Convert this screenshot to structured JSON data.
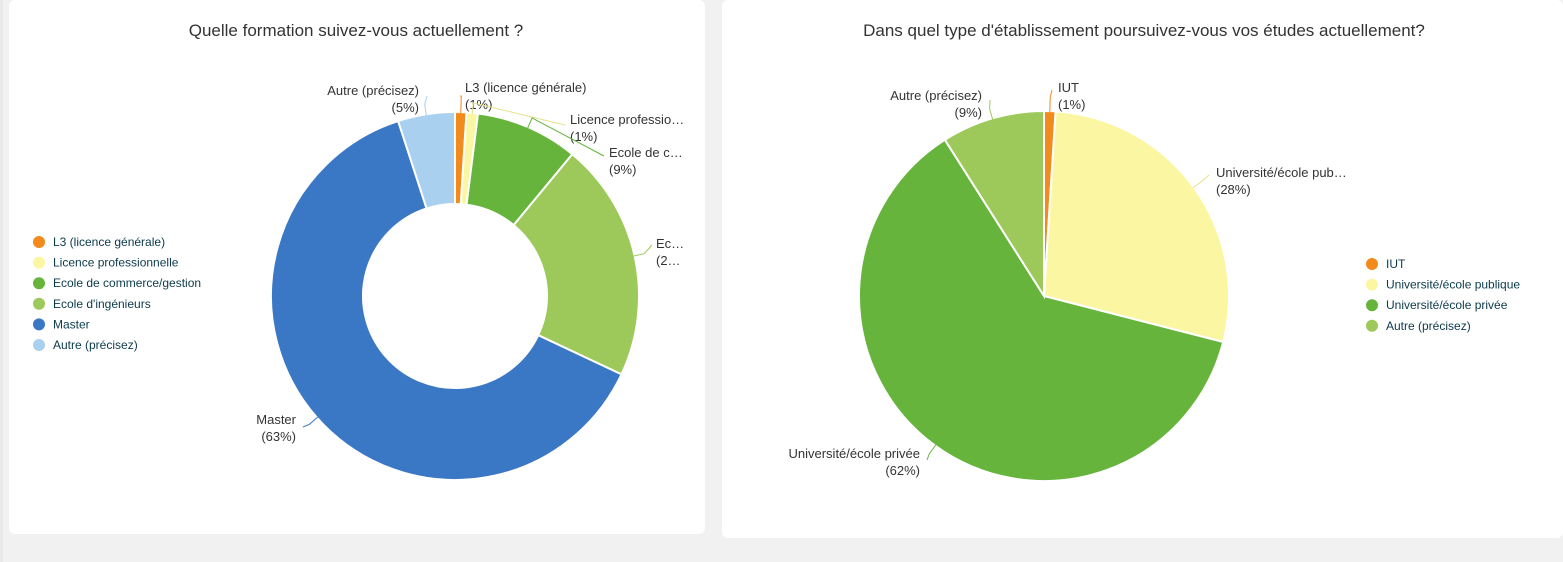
{
  "charts": [
    {
      "id": "left",
      "chart_data": {
        "type": "pie",
        "variant": "donut",
        "title": "Quelle formation suivez-vous actuellement ?",
        "categories": [
          "L3 (licence générale)",
          "Licence professionnelle",
          "Ecole de commerce/gestion",
          "Ecole d'ingénieurs",
          "Master",
          "Autre (précisez)"
        ],
        "values": [
          1,
          1,
          9,
          21,
          63,
          5
        ],
        "colors": [
          "#f28a1c",
          "#fbf6a1",
          "#66b43c",
          "#9dc95a",
          "#3a77c4",
          "#aad0ef"
        ],
        "slice_labels": [
          {
            "name": "L3 (licence générale)",
            "pct": "(1%)"
          },
          {
            "name": "Licence professio…",
            "pct": "(1%)"
          },
          {
            "name": "Ecole de c…",
            "pct": "(9%)"
          },
          {
            "name": "Ec…",
            "pct": "(2…"
          },
          {
            "name": "Master",
            "pct": "(63%)"
          },
          {
            "name": "Autre (précisez)",
            "pct": "(5%)"
          }
        ],
        "legend_position": "left"
      }
    },
    {
      "id": "right",
      "chart_data": {
        "type": "pie",
        "title": "Dans quel type d'établissement poursuivez-vous vos études actuellement?",
        "categories": [
          "IUT",
          "Université/école publique",
          "Université/école privée",
          "Autre (précisez)"
        ],
        "values": [
          1,
          28,
          62,
          9
        ],
        "colors": [
          "#f28a1c",
          "#fbf6a1",
          "#66b43c",
          "#9dc95a"
        ],
        "slice_labels": [
          {
            "name": "IUT",
            "pct": "(1%)"
          },
          {
            "name": "Université/école pub…",
            "pct": "(28%)"
          },
          {
            "name": "Université/école privée",
            "pct": "(62%)"
          },
          {
            "name": "Autre (précisez)",
            "pct": "(9%)"
          }
        ],
        "legend_position": "right"
      }
    }
  ]
}
